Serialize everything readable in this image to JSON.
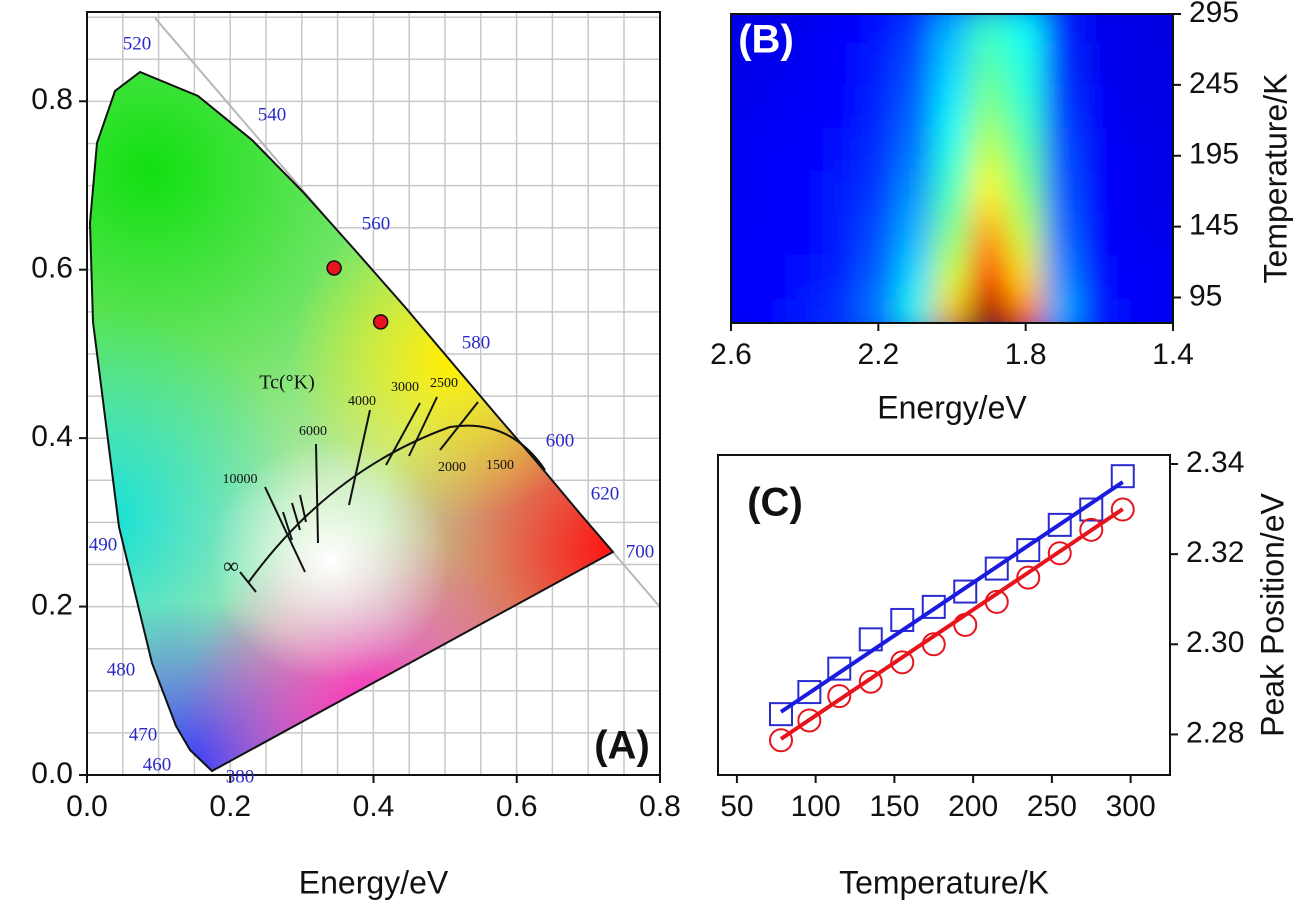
{
  "chart_data": [
    {
      "type": "scatter",
      "title": "(A)",
      "x_label": "Energy/eV",
      "x": [
        0.345,
        0.41
      ],
      "series": [
        {
          "color": "#e8141c",
          "values": [
            0.602,
            0.538
          ]
        }
      ],
      "xlim": [
        0,
        0.8
      ],
      "ylim": [
        0,
        0.906
      ],
      "xticks": [
        {
          "value": 0,
          "label": "0.0"
        },
        0.2,
        0.4,
        0.6,
        0.8
      ],
      "yticks": [
        {
          "value": 0,
          "label": "0.0"
        },
        0.2,
        0.4,
        0.6,
        0.8
      ],
      "y_axis_side": "left",
      "wavelength_labels": [
        "520",
        "540",
        "560",
        "580",
        "600",
        "620",
        "700",
        "490",
        "480",
        "470",
        "460",
        "380"
      ],
      "cct_title": "Tc(°K)",
      "cct_labels": [
        "10000",
        "6000",
        "4000",
        "3000",
        "2500",
        "2000",
        "1500",
        "∞"
      ]
    },
    {
      "type": "heatmap",
      "title": "(B)",
      "x_label": "Energy/eV",
      "y_label": "Temperature/K",
      "x": [
        2.6,
        2.5,
        2.4,
        2.3,
        2.2,
        2.1,
        2.0,
        1.9,
        1.8,
        1.7,
        1.6,
        1.5,
        1.4
      ],
      "y": [
        80,
        110,
        140,
        170,
        200,
        230,
        260,
        290
      ],
      "z": [
        [
          0.12,
          0.13,
          0.15,
          0.18,
          0.25,
          0.4,
          0.7,
          1.0,
          0.8,
          0.3,
          0.15,
          0.12,
          0.11
        ],
        [
          0.12,
          0.12,
          0.14,
          0.16,
          0.22,
          0.34,
          0.58,
          0.86,
          0.66,
          0.26,
          0.14,
          0.12,
          0.11
        ],
        [
          0.12,
          0.12,
          0.13,
          0.15,
          0.2,
          0.3,
          0.5,
          0.72,
          0.56,
          0.23,
          0.13,
          0.11,
          0.11
        ],
        [
          0.11,
          0.12,
          0.13,
          0.15,
          0.18,
          0.27,
          0.44,
          0.63,
          0.5,
          0.21,
          0.13,
          0.11,
          0.1
        ],
        [
          0.11,
          0.12,
          0.12,
          0.14,
          0.17,
          0.24,
          0.4,
          0.56,
          0.46,
          0.2,
          0.12,
          0.11,
          0.1
        ],
        [
          0.11,
          0.11,
          0.12,
          0.13,
          0.16,
          0.22,
          0.36,
          0.5,
          0.42,
          0.18,
          0.12,
          0.1,
          0.1
        ],
        [
          0.1,
          0.11,
          0.11,
          0.13,
          0.15,
          0.2,
          0.33,
          0.46,
          0.4,
          0.17,
          0.11,
          0.1,
          0.1
        ],
        [
          0.1,
          0.1,
          0.11,
          0.12,
          0.14,
          0.18,
          0.3,
          0.42,
          0.38,
          0.16,
          0.11,
          0.1,
          0.09
        ]
      ],
      "colormap": "jet",
      "xlim": [
        2.6,
        1.4
      ],
      "ylim": [
        77,
        295
      ],
      "xticks": [
        2.6,
        2.2,
        1.8,
        1.4
      ],
      "yticks": [
        95,
        145,
        195,
        245,
        295
      ],
      "y_axis_side": "right"
    },
    {
      "type": "scatter",
      "title": "(C)",
      "x_label": "Temperature/K",
      "y_label": "Peak Position/eV",
      "series": [
        {
          "marker": "square",
          "color": "#2b2bd0",
          "x": [
            78,
            96,
            115,
            135,
            155,
            175,
            195,
            215,
            235,
            255,
            275,
            295
          ],
          "values": [
            2.2845,
            2.2894,
            2.2946,
            2.3011,
            2.3054,
            2.3083,
            2.3117,
            2.3168,
            2.3209,
            2.3265,
            2.3299,
            2.3373
          ]
        },
        {
          "marker": "circle",
          "color": "#e8141c",
          "x": [
            78,
            96,
            115,
            135,
            155,
            175,
            195,
            215,
            235,
            255,
            275,
            295
          ],
          "values": [
            2.2787,
            2.2831,
            2.2885,
            2.2917,
            2.296,
            2.3,
            2.3043,
            2.3094,
            2.3148,
            2.3202,
            2.3254,
            2.3299
          ]
        },
        {
          "marker": "line",
          "color": "#1a1ae0",
          "x": [
            78,
            295
          ],
          "values": [
            2.285,
            2.336
          ]
        },
        {
          "marker": "line",
          "color": "#e8141c",
          "x": [
            78,
            295
          ],
          "values": [
            2.279,
            2.33
          ]
        }
      ],
      "xlim": [
        38,
        325
      ],
      "ylim": [
        2.271,
        2.342
      ],
      "xticks": [
        50,
        100,
        150,
        200,
        250,
        300
      ],
      "yticks": [
        2.28,
        {
          "value": 2.3,
          "label": "2.30"
        },
        2.32,
        2.34
      ],
      "y_axis_side": "right"
    }
  ]
}
